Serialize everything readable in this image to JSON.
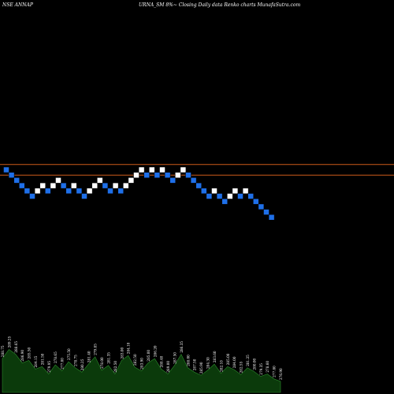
{
  "header": {
    "left": "NSE ANNAP",
    "right": "URNA_SM 8%~  Closing Daily data  Renko  charts MunafaSutra.com"
  },
  "colors": {
    "background": "#000000",
    "up_brick": "#ffffff",
    "down_brick": "#1e6fe8",
    "line": "#cc5a1a",
    "volume_fill": "#0b3a0b",
    "volume_stroke": "#2c8a2c"
  },
  "chart_data": {
    "type": "renko",
    "bricks": [
      {
        "dir": "down",
        "level": 0
      },
      {
        "dir": "down",
        "level": 1
      },
      {
        "dir": "down",
        "level": 2
      },
      {
        "dir": "down",
        "level": 3
      },
      {
        "dir": "down",
        "level": 4
      },
      {
        "dir": "down",
        "level": 5
      },
      {
        "dir": "up",
        "level": 4
      },
      {
        "dir": "up",
        "level": 3
      },
      {
        "dir": "down",
        "level": 4
      },
      {
        "dir": "up",
        "level": 3
      },
      {
        "dir": "up",
        "level": 2
      },
      {
        "dir": "down",
        "level": 3
      },
      {
        "dir": "down",
        "level": 4
      },
      {
        "dir": "up",
        "level": 3
      },
      {
        "dir": "down",
        "level": 4
      },
      {
        "dir": "down",
        "level": 5
      },
      {
        "dir": "up",
        "level": 4
      },
      {
        "dir": "up",
        "level": 3
      },
      {
        "dir": "up",
        "level": 2
      },
      {
        "dir": "down",
        "level": 3
      },
      {
        "dir": "down",
        "level": 4
      },
      {
        "dir": "up",
        "level": 3
      },
      {
        "dir": "down",
        "level": 4
      },
      {
        "dir": "up",
        "level": 3
      },
      {
        "dir": "up",
        "level": 2
      },
      {
        "dir": "up",
        "level": 1
      },
      {
        "dir": "up",
        "level": 0
      },
      {
        "dir": "down",
        "level": 1
      },
      {
        "dir": "up",
        "level": 0
      },
      {
        "dir": "down",
        "level": 1
      },
      {
        "dir": "up",
        "level": 0
      },
      {
        "dir": "down",
        "level": 1
      },
      {
        "dir": "down",
        "level": 2
      },
      {
        "dir": "up",
        "level": 1
      },
      {
        "dir": "up",
        "level": 0
      },
      {
        "dir": "down",
        "level": 1
      },
      {
        "dir": "down",
        "level": 2
      },
      {
        "dir": "down",
        "level": 3
      },
      {
        "dir": "down",
        "level": 4
      },
      {
        "dir": "down",
        "level": 5
      },
      {
        "dir": "up",
        "level": 4
      },
      {
        "dir": "down",
        "level": 5
      },
      {
        "dir": "down",
        "level": 6
      },
      {
        "dir": "up",
        "level": 5
      },
      {
        "dir": "up",
        "level": 4
      },
      {
        "dir": "down",
        "level": 5
      },
      {
        "dir": "up",
        "level": 4
      },
      {
        "dir": "down",
        "level": 5
      },
      {
        "dir": "down",
        "level": 6
      },
      {
        "dir": "down",
        "level": 7
      },
      {
        "dir": "down",
        "level": 8
      },
      {
        "dir": "down",
        "level": 9
      }
    ],
    "levels": {
      "min": 0,
      "max": 9
    },
    "reference_lines": [
      {
        "level": -0.5
      },
      {
        "level": 1.5
      }
    ],
    "volume_labels": [
      "288.75",
      "289.25",
      "288.65",
      "286.90",
      "285.50",
      "284.15",
      "281.50",
      "279.95",
      "278.65",
      "277.00",
      "275.50",
      "278.75",
      "280.25",
      "281.40",
      "279.85",
      "278.00",
      "281.35",
      "282.50",
      "283.00",
      "284.10",
      "282.50",
      "283.90",
      "285.00",
      "286.20",
      "288.40",
      "289.00",
      "287.50",
      "286.35",
      "288.00",
      "287.50",
      "285.90",
      "284.30",
      "283.60",
      "282.10",
      "285.00",
      "284.00",
      "282.55",
      "281.25",
      "280.00",
      "279.35",
      "278.60",
      "277.80",
      "276.90"
    ],
    "volume": [
      0.55,
      0.7,
      0.62,
      0.48,
      0.52,
      0.38,
      0.42,
      0.3,
      0.45,
      0.35,
      0.5,
      0.4,
      0.33,
      0.46,
      0.58,
      0.36,
      0.44,
      0.3,
      0.52,
      0.6,
      0.41,
      0.35,
      0.48,
      0.55,
      0.38,
      0.3,
      0.44,
      0.62,
      0.4,
      0.33,
      0.28,
      0.36,
      0.46,
      0.31,
      0.42,
      0.37,
      0.29,
      0.4,
      0.34,
      0.26,
      0.3,
      0.22,
      0.18
    ]
  }
}
